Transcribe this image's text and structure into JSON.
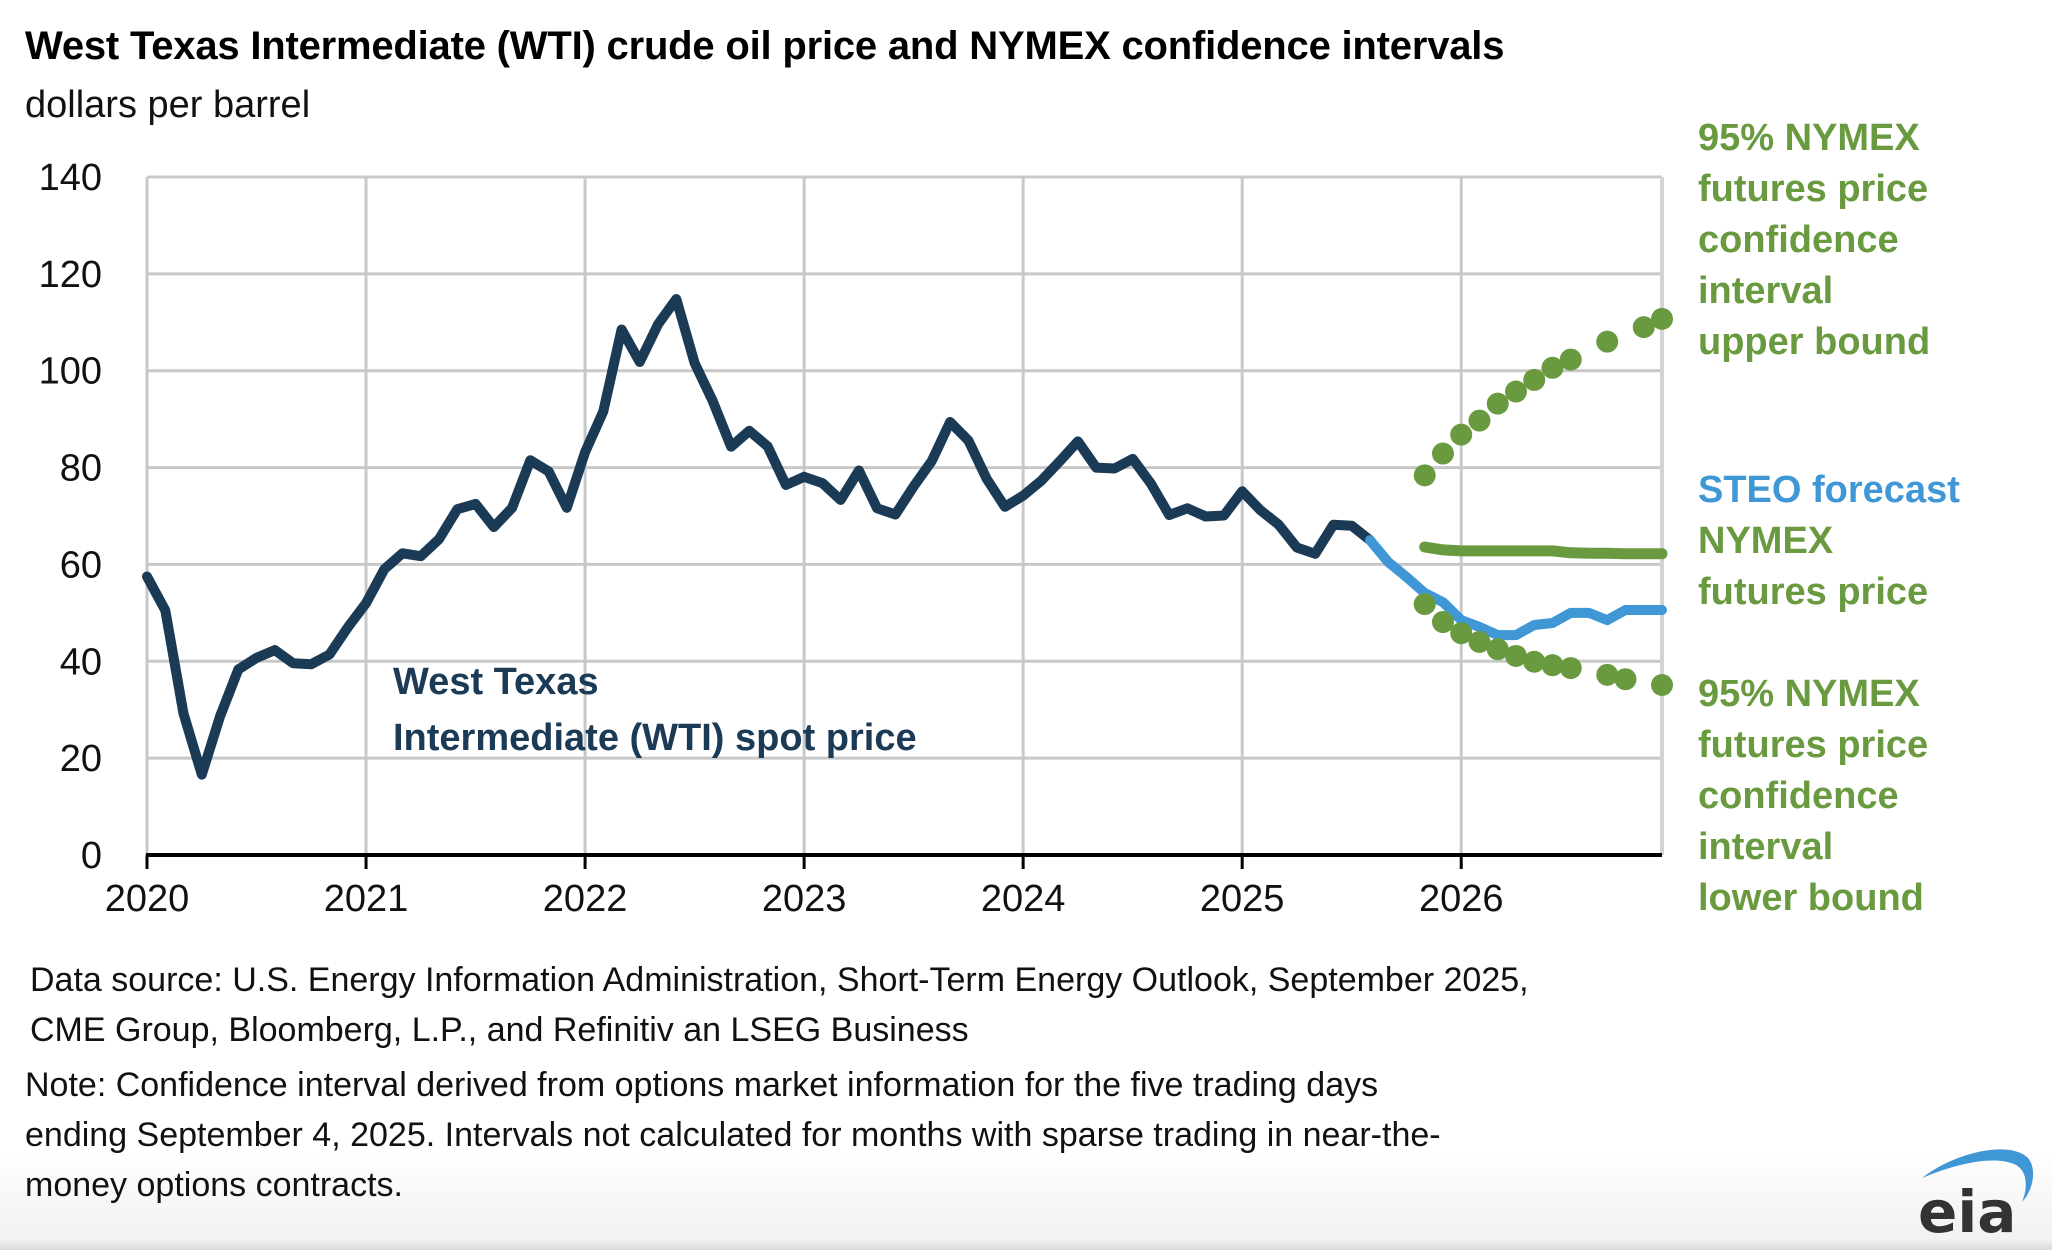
{
  "header": {
    "title": "West Texas Intermediate (WTI) crude oil price and NYMEX confidence intervals",
    "subtitle": "dollars per barrel"
  },
  "footer": {
    "source_line1": "Data source: U.S. Energy Information Administration, Short-Term Energy Outlook, September 2025,",
    "source_line2": "CME Group, Bloomberg, L.P., and Refinitiv an LSEG Business",
    "note_line1": "Note: Confidence interval derived from options market information for the five trading days",
    "note_line2": "ending September 4, 2025. Intervals not calculated for months with sparse trading in near-the-",
    "note_line3": "money options contracts.",
    "logo_text": "eia"
  },
  "colors": {
    "wti": "#1b3a55",
    "steo": "#3f97d6",
    "nymex": "#6a9a40",
    "grid": "#c8c8c8",
    "axis": "#000000",
    "logo_text": "#333333",
    "logo_swoosh": "#3f97d6"
  },
  "chart_data": {
    "type": "line",
    "title": "West Texas Intermediate (WTI) crude oil price and NYMEX confidence intervals",
    "subtitle": "dollars per barrel",
    "xlabel": "",
    "ylabel": "dollars per barrel",
    "ylim": [
      0,
      140
    ],
    "yticks": [
      0,
      20,
      40,
      60,
      80,
      100,
      120,
      140
    ],
    "ytick_labels": [
      "0",
      "20",
      "40",
      "60",
      "80",
      "100",
      "120",
      "140"
    ],
    "xlim": [
      "2020-01",
      "2026-12"
    ],
    "xticks": [
      "2020-01",
      "2021-01",
      "2022-01",
      "2023-01",
      "2024-01",
      "2025-01",
      "2026-01"
    ],
    "xtick_labels": [
      "2020",
      "2021",
      "2022",
      "2023",
      "2024",
      "2025",
      "2026"
    ],
    "grid": true,
    "legend": "direct labels at right of plot",
    "annotations": [
      {
        "text_lines": [
          "West Texas",
          "Intermediate (WTI) spot price"
        ],
        "series": "wti",
        "placement": "inside plot, lower-middle"
      }
    ],
    "series": [
      {
        "name": "West Texas Intermediate (WTI) spot price",
        "key": "wti",
        "style": "solid",
        "start": "2020-01",
        "values": [
          57.5,
          50.5,
          29.2,
          16.6,
          28.6,
          38.3,
          40.7,
          42.3,
          39.6,
          39.4,
          41.4,
          47.0,
          52.0,
          59.0,
          62.3,
          61.7,
          65.2,
          71.4,
          72.5,
          67.7,
          71.7,
          81.5,
          79.2,
          71.7,
          83.2,
          91.6,
          108.5,
          101.8,
          109.6,
          114.8,
          101.6,
          93.7,
          84.3,
          87.6,
          84.4,
          76.4,
          78.1,
          76.8,
          73.3,
          79.4,
          71.6,
          70.3,
          76.1,
          81.4,
          89.4,
          85.6,
          77.7,
          71.9,
          74.2,
          77.3,
          81.3,
          85.4,
          80.0,
          79.8,
          81.8,
          76.7,
          70.2,
          71.6,
          69.9,
          70.1,
          75.1,
          71.2,
          68.2,
          63.5,
          62.2,
          68.2,
          68.0,
          65.0
        ]
      },
      {
        "name": "STEO forecast",
        "key": "steo",
        "style": "solid",
        "start": "2025-08",
        "values": [
          65.0,
          60.5,
          57.4,
          54.1,
          52.2,
          48.5,
          47.1,
          45.4,
          45.4,
          47.5,
          47.9,
          50.0,
          50.0,
          48.5,
          50.6,
          50.6,
          50.6
        ]
      },
      {
        "name": "NYMEX futures price",
        "key": "nymex_futures",
        "style": "solid",
        "start": "2025-11",
        "values": [
          63.6,
          63.0,
          62.8,
          62.8,
          62.8,
          62.8,
          62.8,
          62.8,
          62.4,
          62.3,
          62.3,
          62.2,
          62.2,
          62.2
        ]
      },
      {
        "name": "95% NYMEX futures price confidence interval upper bound",
        "key": "upper",
        "style": "dots",
        "points": [
          {
            "x": "2025-11",
            "y": 78.4
          },
          {
            "x": "2025-12",
            "y": 82.9
          },
          {
            "x": "2026-01",
            "y": 86.8
          },
          {
            "x": "2026-02",
            "y": 89.7
          },
          {
            "x": "2026-03",
            "y": 93.2
          },
          {
            "x": "2026-04",
            "y": 95.7
          },
          {
            "x": "2026-05",
            "y": 98.1
          },
          {
            "x": "2026-06",
            "y": 100.6
          },
          {
            "x": "2026-07",
            "y": 102.3
          },
          {
            "x": "2026-09",
            "y": 106.0
          },
          {
            "x": "2026-11",
            "y": 109.0
          },
          {
            "x": "2026-12",
            "y": 110.7
          }
        ]
      },
      {
        "name": "95% NYMEX futures price confidence interval lower bound",
        "key": "lower",
        "style": "dots",
        "points": [
          {
            "x": "2025-11",
            "y": 51.8
          },
          {
            "x": "2025-12",
            "y": 48.1
          },
          {
            "x": "2026-01",
            "y": 45.8
          },
          {
            "x": "2026-02",
            "y": 44.0
          },
          {
            "x": "2026-03",
            "y": 42.5
          },
          {
            "x": "2026-04",
            "y": 41.1
          },
          {
            "x": "2026-05",
            "y": 39.9
          },
          {
            "x": "2026-06",
            "y": 39.2
          },
          {
            "x": "2026-07",
            "y": 38.6
          },
          {
            "x": "2026-09",
            "y": 37.2
          },
          {
            "x": "2026-10",
            "y": 36.3
          },
          {
            "x": "2026-12",
            "y": 35.1
          }
        ]
      }
    ],
    "labels": {
      "upper": [
        "95% NYMEX",
        "futures price",
        "confidence",
        "interval",
        "upper bound"
      ],
      "steo": [
        "STEO forecast"
      ],
      "nymex_futures": [
        "NYMEX",
        "futures price"
      ],
      "lower": [
        "95% NYMEX",
        "futures price",
        "confidence",
        "interval",
        "lower bound"
      ],
      "wti": [
        "West Texas",
        "Intermediate (WTI) spot price"
      ]
    }
  }
}
